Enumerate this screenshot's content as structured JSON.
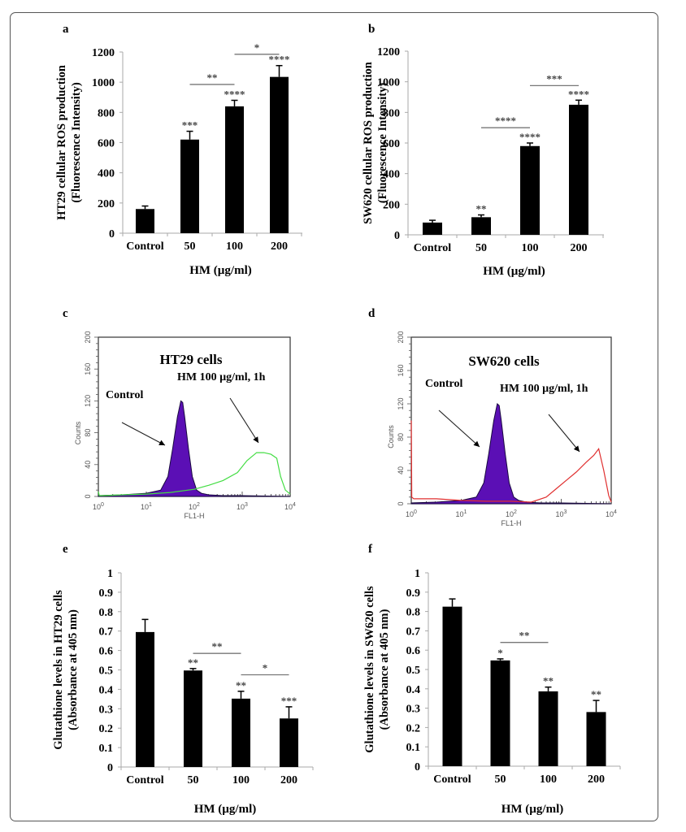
{
  "figure": {
    "panel_labels": [
      "a",
      "b",
      "c",
      "d",
      "e",
      "f"
    ]
  },
  "chart_data": [
    {
      "panel": "a",
      "type": "bar",
      "title": "",
      "categories": [
        "Control",
        "50",
        "100",
        "200"
      ],
      "values": [
        160,
        620,
        840,
        1035
      ],
      "errors": [
        20,
        55,
        40,
        75
      ],
      "xlabel": "HM (µg/ml)",
      "ylabel": [
        "HT29 cellular ROS production",
        "(Fluorescence Intensity)"
      ],
      "ylim": [
        0,
        1200
      ],
      "yticks": [
        "0",
        "200",
        "400",
        "600",
        "800",
        "1000",
        "1200"
      ],
      "bar_stars": [
        "",
        "***",
        "****",
        "****"
      ],
      "brackets": [
        {
          "from": "50",
          "to": "100",
          "label": "**",
          "level": 985
        },
        {
          "from": "100",
          "to": "200",
          "label": "*",
          "level": 1185
        }
      ],
      "grid": false,
      "color": "#000000"
    },
    {
      "panel": "b",
      "type": "bar",
      "title": "",
      "categories": [
        "Control",
        "50",
        "100",
        "200"
      ],
      "values": [
        80,
        115,
        580,
        850
      ],
      "errors": [
        15,
        15,
        20,
        30
      ],
      "xlabel": "HM (µg/ml)",
      "ylabel": [
        "SW620 cellular ROS production",
        "(Fluorescence Intensity)"
      ],
      "ylim": [
        0,
        1200
      ],
      "yticks": [
        "0",
        "200",
        "400",
        "600",
        "800",
        "1000",
        "1200"
      ],
      "bar_stars": [
        "",
        "**",
        "****",
        "****"
      ],
      "brackets": [
        {
          "from": "50",
          "to": "100",
          "label": "****",
          "level": 700
        },
        {
          "from": "100",
          "to": "200",
          "label": "***",
          "level": 975
        }
      ],
      "grid": false,
      "color": "#000000"
    },
    {
      "panel": "c",
      "type": "area",
      "title": "HT29 cells",
      "xlabel": "FL1-H",
      "ylabel": "Counts",
      "xscale": "log",
      "xlim": [
        1,
        10000
      ],
      "xticks": [
        "10^0",
        "10^1",
        "10^2",
        "10^3",
        "10^4"
      ],
      "ylim": [
        0,
        200
      ],
      "yticks": [
        "0",
        "40",
        "80",
        "120",
        "160",
        "200"
      ],
      "series": [
        {
          "name": "Control",
          "color": "#5b0fb5",
          "filled": true,
          "x_log10": [
            0,
            0.5,
            1.0,
            1.3,
            1.45,
            1.55,
            1.65,
            1.72,
            1.76,
            1.8,
            1.88,
            1.96,
            2.05,
            2.15,
            2.3,
            2.6,
            3.0,
            4.0
          ],
          "y": [
            1,
            2,
            4,
            8,
            25,
            60,
            100,
            120,
            118,
            100,
            60,
            25,
            8,
            4,
            2,
            1,
            1,
            0
          ]
        },
        {
          "name": "HM 100 µg/ml, 1h",
          "color": "#44dd44",
          "filled": false,
          "x_log10": [
            0,
            0.02,
            0.1,
            0.5,
            1.0,
            1.5,
            2.0,
            2.3,
            2.6,
            2.9,
            3.1,
            3.3,
            3.45,
            3.6,
            3.72,
            3.8,
            3.9,
            4.0
          ],
          "y": [
            6,
            1,
            1,
            2,
            3,
            5,
            9,
            14,
            20,
            30,
            45,
            55,
            55,
            53,
            48,
            25,
            8,
            3
          ]
        }
      ],
      "annotations": [
        {
          "text": "Control",
          "arrow_to_series": "Control"
        },
        {
          "text": "HM 100 µg/ml, 1h",
          "arrow_to_series": "HM 100 µg/ml, 1h"
        }
      ]
    },
    {
      "panel": "d",
      "type": "area",
      "title": "SW620 cells",
      "xlabel": "FL1-H",
      "ylabel": "Counts",
      "xscale": "log",
      "xlim": [
        1,
        10000
      ],
      "xticks": [
        "10^0",
        "10^1",
        "10^2",
        "10^3",
        "10^4"
      ],
      "ylim": [
        0,
        200
      ],
      "yticks": [
        "0",
        "40",
        "80",
        "120",
        "160",
        "200"
      ],
      "series": [
        {
          "name": "Control",
          "color": "#5b0fb5",
          "filled": true,
          "x_log10": [
            0,
            0.5,
            1.0,
            1.3,
            1.45,
            1.55,
            1.65,
            1.72,
            1.76,
            1.8,
            1.88,
            1.96,
            2.05,
            2.15,
            2.3,
            2.6,
            3.0,
            4.0
          ],
          "y": [
            1,
            2,
            4,
            8,
            25,
            60,
            100,
            120,
            118,
            100,
            60,
            25,
            8,
            4,
            2,
            1,
            1,
            0
          ]
        },
        {
          "name": "HM 100 µg/ml, 1h",
          "color": "#e03030",
          "filled": false,
          "x_log10": [
            0,
            0.005,
            0.01,
            0.05,
            0.5,
            1.0,
            1.5,
            2.0,
            2.4,
            2.7,
            2.9,
            3.1,
            3.3,
            3.5,
            3.65,
            3.75,
            3.85,
            3.95,
            4.0
          ],
          "y": [
            100,
            55,
            8,
            6,
            6,
            4,
            3,
            3,
            2,
            8,
            18,
            28,
            38,
            50,
            58,
            66,
            40,
            10,
            2
          ]
        }
      ],
      "annotations": [
        {
          "text": "Control",
          "arrow_to_series": "Control"
        },
        {
          "text": "HM 100 µg/ml, 1h",
          "arrow_to_series": "HM 100 µg/ml, 1h"
        }
      ]
    },
    {
      "panel": "e",
      "type": "bar",
      "title": "",
      "categories": [
        "Control",
        "50",
        "100",
        "200"
      ],
      "values": [
        0.695,
        0.497,
        0.352,
        0.25
      ],
      "errors": [
        0.065,
        0.01,
        0.038,
        0.06
      ],
      "xlabel": "HM (µg/ml)",
      "ylabel": [
        "Glutathione levels in HT29 cells",
        "(Absorbance at 405 nm)"
      ],
      "ylim": [
        0,
        1
      ],
      "yticks": [
        "0",
        "0.1",
        "0.2",
        "0.3",
        "0.4",
        "0.5",
        "0.6",
        "0.7",
        "0.8",
        "0.9",
        "1"
      ],
      "bar_stars": [
        "",
        "**",
        "**",
        "***"
      ],
      "brackets": [
        {
          "from": "50",
          "to": "100",
          "label": "**",
          "level": 0.585
        },
        {
          "from": "100",
          "to": "200",
          "label": "*",
          "level": 0.475
        }
      ],
      "grid": false,
      "color": "#000000"
    },
    {
      "panel": "f",
      "type": "bar",
      "title": "",
      "categories": [
        "Control",
        "50",
        "100",
        "200"
      ],
      "values": [
        0.825,
        0.547,
        0.387,
        0.28
      ],
      "errors": [
        0.04,
        0.008,
        0.022,
        0.06
      ],
      "xlabel": "HM (µg/ml)",
      "ylabel": [
        "Glutathione levels in SW620 cells",
        "(Absorbance at 405 nm)"
      ],
      "ylim": [
        0,
        1
      ],
      "yticks": [
        "0",
        "0.1",
        "0.2",
        "0.3",
        "0.4",
        "0.5",
        "0.6",
        "0.7",
        "0.8",
        "0.9",
        "1"
      ],
      "bar_stars": [
        "",
        "*",
        "**",
        "**"
      ],
      "brackets": [
        {
          "from": "50",
          "to": "100",
          "label": "**",
          "level": 0.64
        }
      ],
      "grid": false,
      "color": "#000000"
    }
  ]
}
